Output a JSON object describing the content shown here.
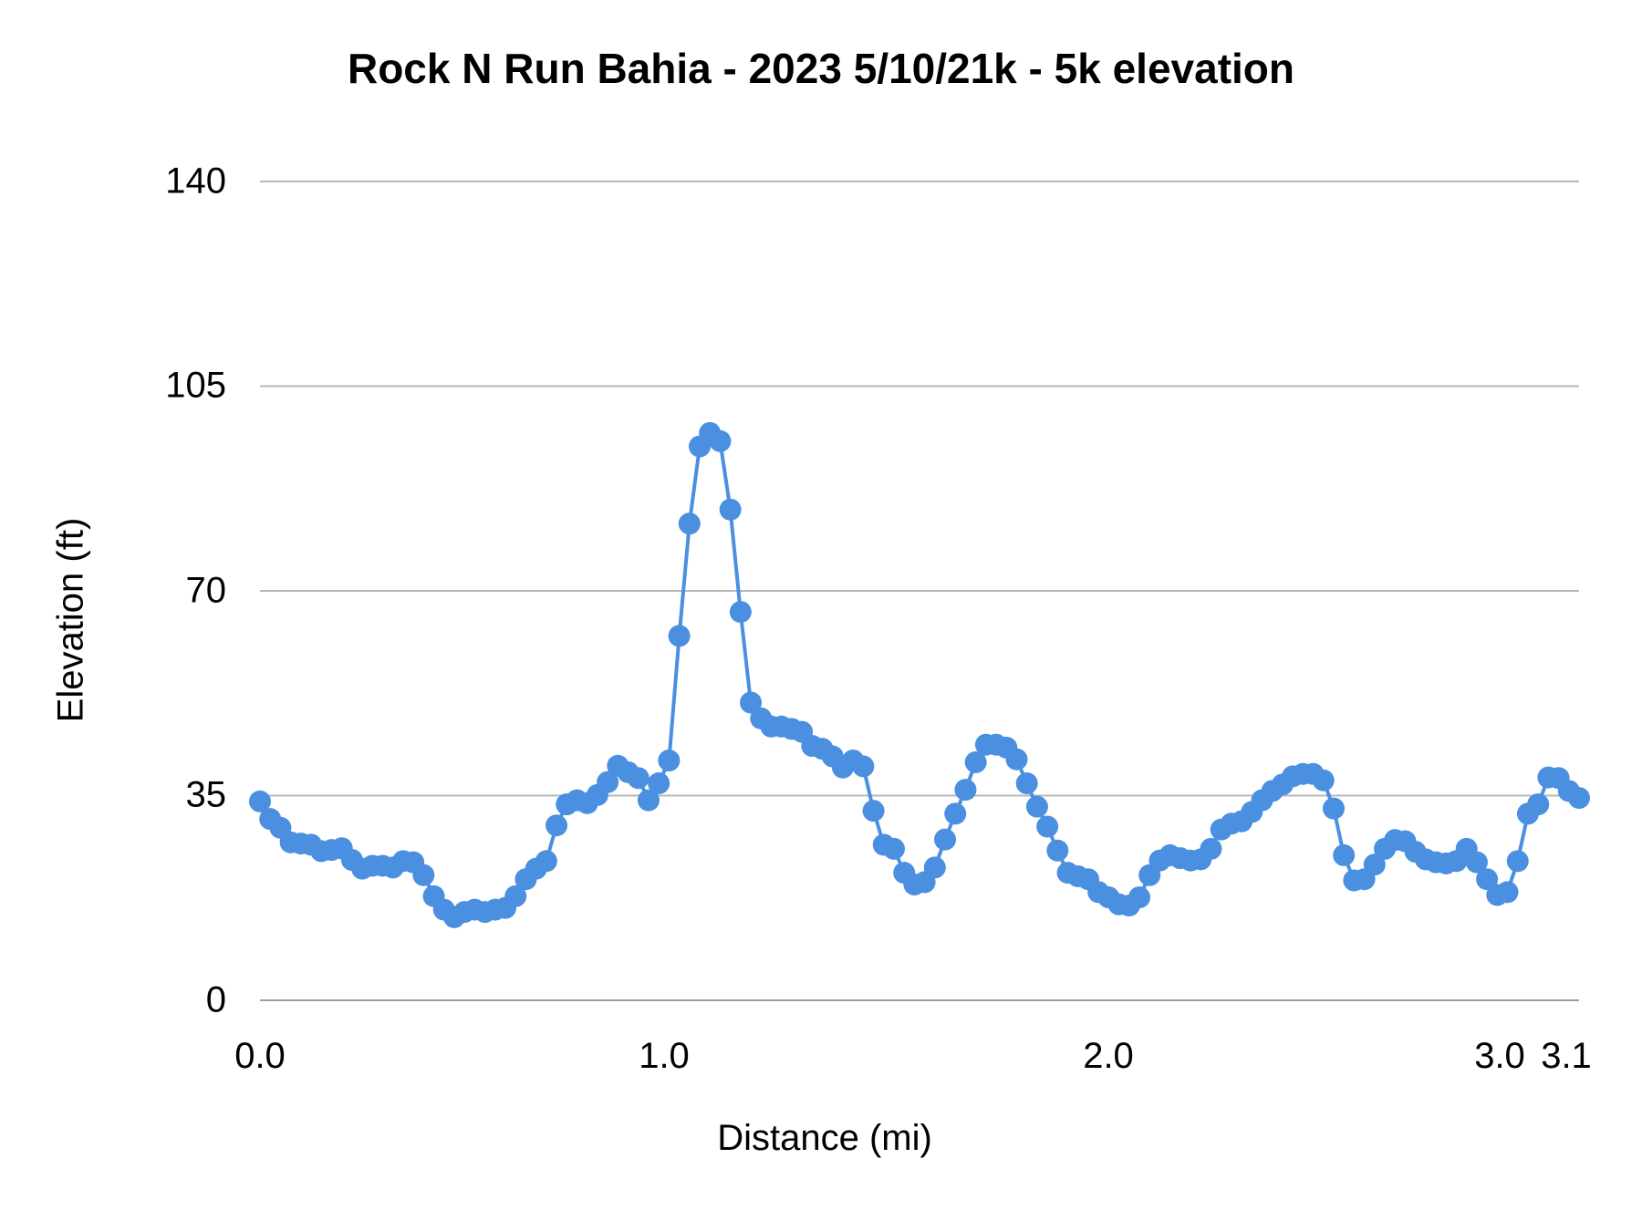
{
  "chart_data": {
    "type": "line",
    "title": "Rock N Run Bahia - 2023 5/10/21k - 5k elevation",
    "xlabel": "Distance (mi)",
    "ylabel": "Elevation (ft)",
    "ylim": [
      0,
      140
    ],
    "xlim": [
      0.0,
      3.1
    ],
    "y_ticks": [
      "0",
      "35",
      "70",
      "105",
      "140"
    ],
    "x_ticks": [
      "0.0",
      "1.0",
      "2.0",
      "3.0",
      "3.1"
    ],
    "grid": true,
    "legend": "none",
    "markers": true,
    "series_color": "#4a8fe0",
    "series": [
      {
        "name": "Elevation (ft)",
        "x_step": 0.024,
        "values": [
          34,
          31,
          29.5,
          27,
          26.8,
          26.6,
          25.5,
          25.7,
          26,
          24,
          22.5,
          23,
          23,
          22.7,
          23.8,
          23.6,
          21.4,
          17.8,
          15.5,
          14.2,
          15.1,
          15.5,
          15.1,
          15.5,
          15.8,
          17.8,
          20.7,
          22.5,
          23.8,
          29.9,
          33.5,
          34.2,
          33.7,
          35.1,
          37.3,
          40.1,
          39,
          38,
          34.2,
          37.1,
          41,
          62.3,
          81.5,
          94.7,
          97,
          95.6,
          83.9,
          66.4,
          50.9,
          48.2,
          46.8,
          46.8,
          46.4,
          45.9,
          43.5,
          43,
          41.7,
          39.8,
          41,
          40,
          32.4,
          26.6,
          25.9,
          21.8,
          19.8,
          20.2,
          22.7,
          27.5,
          31.9,
          36,
          40.7,
          43.7,
          43.7,
          43.2,
          41.2,
          37.1,
          33.1,
          29.7,
          25.6,
          21.8,
          21.2,
          20.7,
          18.5,
          17.6,
          16.4,
          16.2,
          17.6,
          21.4,
          23.9,
          24.8,
          24.3,
          23.9,
          24.1,
          25.9,
          29.2,
          30.2,
          30.6,
          32.2,
          34.2,
          35.8,
          36.9,
          38.3,
          38.7,
          38.7,
          37.6,
          32.8,
          24.8,
          20.5,
          20.7,
          23.2,
          25.9,
          27.4,
          27.2,
          25.4,
          24.1,
          23.6,
          23.4,
          23.8,
          25.9,
          23.6,
          20.7,
          18,
          18.5,
          23.8,
          31.9,
          33.5,
          38.1,
          38,
          35.8,
          34.6
        ]
      }
    ]
  }
}
